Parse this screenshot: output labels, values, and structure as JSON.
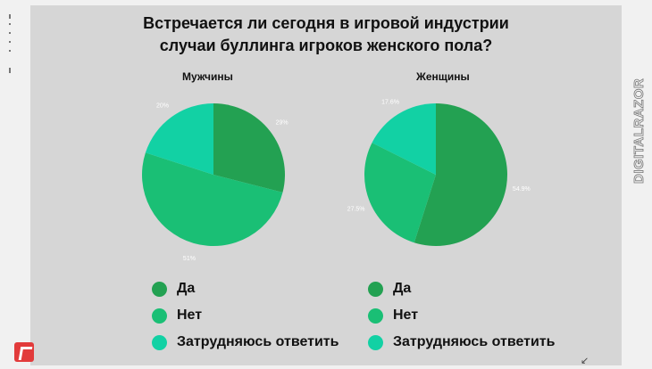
{
  "title": {
    "line1": "Встречается ли сегодня в игровой индустрии",
    "line2": "случаи буллинга игроков женского пола?"
  },
  "watermark_text": "DIGITALRAZOR",
  "colors": {
    "yes": "#23a152",
    "no": "#1abf75",
    "unsure": "#12d1a4"
  },
  "chart_data": [
    {
      "type": "pie",
      "title": "Мужчины",
      "series": [
        {
          "name": "Да",
          "value": 29,
          "label": "29%"
        },
        {
          "name": "Нет",
          "value": 51,
          "label": "51%"
        },
        {
          "name": "Затрудняюсь ответить",
          "value": 20,
          "label": "20%"
        }
      ],
      "legend": "bottom"
    },
    {
      "type": "pie",
      "title": "Женщины",
      "series": [
        {
          "name": "Да",
          "value": 54.9,
          "label": "54.9%"
        },
        {
          "name": "Нет",
          "value": 27.5,
          "label": "27.5%"
        },
        {
          "name": "Затрудняюсь ответить",
          "value": 17.6,
          "label": "17.6%"
        }
      ],
      "legend": "bottom"
    }
  ]
}
